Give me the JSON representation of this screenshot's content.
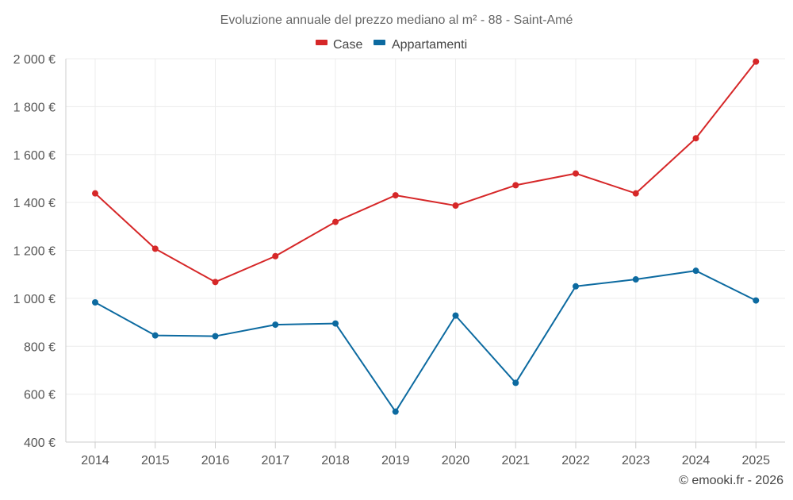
{
  "chart_data": {
    "type": "line",
    "title": "Evoluzione annuale del prezzo mediano al m² - 88 - Saint-Amé",
    "categories": [
      "2014",
      "2015",
      "2016",
      "2017",
      "2018",
      "2019",
      "2020",
      "2021",
      "2022",
      "2023",
      "2024",
      "2025"
    ],
    "series": [
      {
        "name": "Case",
        "color": "#d62728",
        "values": [
          1438,
          1207,
          1068,
          1176,
          1319,
          1430,
          1387,
          1472,
          1521,
          1438,
          1668,
          1988
        ]
      },
      {
        "name": "Appartamenti",
        "color": "#0c6aa0",
        "values": [
          983,
          845,
          842,
          890,
          895,
          527,
          928,
          647,
          1050,
          1079,
          1115,
          991
        ]
      }
    ],
    "ylim": [
      400,
      2000
    ],
    "yticks": [
      400,
      600,
      800,
      1000,
      1200,
      1400,
      1600,
      1800,
      2000
    ],
    "ytick_labels": [
      "400 €",
      "600 €",
      "800 €",
      "1 000 €",
      "1 200 €",
      "1 400 €",
      "1 600 €",
      "1 800 €",
      "2 000 €"
    ],
    "xlabel": "",
    "ylabel": "",
    "grid": true,
    "legend_position": "top-center"
  },
  "credit": "© emooki.fr - 2026"
}
